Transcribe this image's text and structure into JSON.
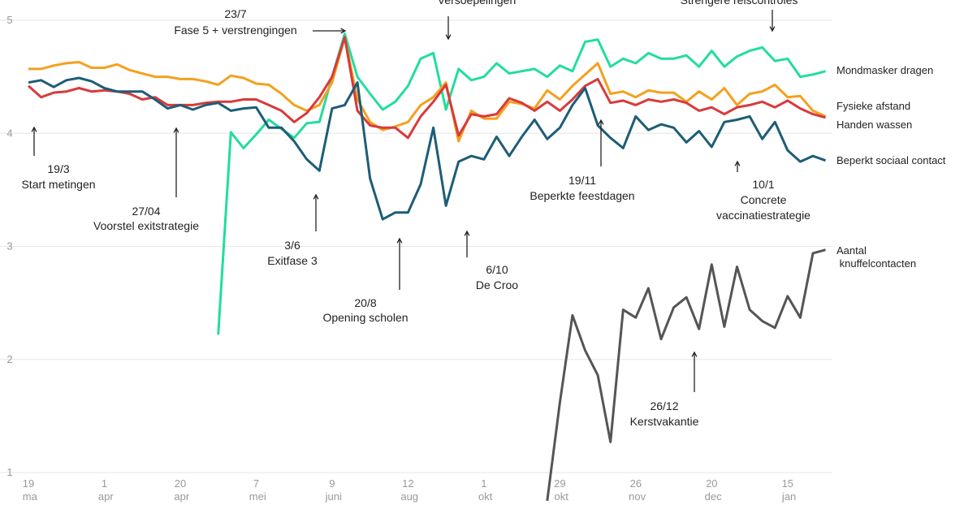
{
  "chart_data": {
    "type": "line",
    "categories": [
      "19 ma",
      null,
      null,
      null,
      null,
      null,
      "1 apr",
      null,
      null,
      null,
      null,
      null,
      "20 apr",
      null,
      null,
      null,
      null,
      null,
      "7 mei",
      null,
      null,
      null,
      null,
      null,
      "9 juni",
      null,
      null,
      null,
      null,
      null,
      "12 aug",
      null,
      null,
      null,
      null,
      null,
      "1 okt",
      null,
      null,
      null,
      null,
      null,
      "29 okt",
      null,
      null,
      null,
      null,
      null,
      "26 nov",
      null,
      null,
      null,
      null,
      null,
      "20 dec",
      null,
      null,
      null,
      null,
      null,
      "15 jan",
      null,
      null,
      null
    ],
    "ylim": [
      1,
      5
    ],
    "yticks": [
      1,
      2,
      3,
      4,
      5
    ],
    "grid": true,
    "series": [
      {
        "name": "Mondmasker dragen",
        "color": "#22dd9e",
        "values": [
          null,
          null,
          null,
          null,
          null,
          null,
          null,
          null,
          null,
          null,
          null,
          null,
          null,
          null,
          null,
          2.22,
          4.01,
          3.87,
          3.99,
          4.12,
          4.04,
          3.96,
          4.09,
          4.1,
          4.5,
          4.88,
          4.5,
          4.35,
          4.21,
          4.28,
          4.42,
          4.66,
          4.71,
          4.21,
          4.57,
          4.47,
          4.5,
          4.62,
          4.53,
          4.55,
          4.57,
          4.5,
          4.6,
          4.55,
          4.81,
          4.83,
          4.59,
          4.66,
          4.62,
          4.71,
          4.66,
          4.66,
          4.69,
          4.59,
          4.73,
          4.59,
          4.68,
          4.73,
          4.76,
          4.64,
          4.66,
          4.5,
          4.52,
          4.55
        ]
      },
      {
        "name": "Fysieke afstand",
        "color": "#f5a01e",
        "values": [
          4.57,
          4.57,
          4.6,
          4.62,
          4.63,
          4.58,
          4.58,
          4.61,
          4.56,
          4.53,
          4.5,
          4.5,
          4.48,
          4.48,
          4.46,
          4.43,
          4.51,
          4.49,
          4.44,
          4.43,
          4.35,
          4.25,
          4.2,
          4.25,
          4.45,
          4.85,
          4.3,
          4.1,
          4.03,
          4.06,
          4.1,
          4.25,
          4.32,
          4.45,
          3.93,
          4.2,
          4.13,
          4.13,
          4.28,
          4.26,
          4.22,
          4.38,
          4.3,
          4.42,
          4.52,
          4.62,
          4.35,
          4.37,
          4.32,
          4.38,
          4.36,
          4.36,
          4.28,
          4.37,
          4.3,
          4.4,
          4.25,
          4.35,
          4.37,
          4.43,
          4.32,
          4.33,
          4.2,
          4.15
        ]
      },
      {
        "name": "Handen wassen",
        "color": "#d93a3a",
        "values": [
          4.42,
          4.32,
          4.36,
          4.37,
          4.4,
          4.37,
          4.38,
          4.37,
          4.35,
          4.3,
          4.32,
          4.25,
          4.25,
          4.25,
          4.27,
          4.28,
          4.28,
          4.3,
          4.3,
          4.25,
          4.2,
          4.1,
          4.18,
          4.32,
          4.5,
          4.85,
          4.2,
          4.07,
          4.05,
          4.05,
          3.96,
          4.15,
          4.28,
          4.43,
          3.98,
          4.17,
          4.15,
          4.17,
          4.31,
          4.27,
          4.2,
          4.28,
          4.2,
          4.3,
          4.42,
          4.48,
          4.27,
          4.29,
          4.25,
          4.3,
          4.28,
          4.3,
          4.27,
          4.2,
          4.23,
          4.17,
          4.23,
          4.25,
          4.28,
          4.23,
          4.29,
          4.22,
          4.17,
          4.14
        ]
      },
      {
        "name": "Beperkt sociaal contact",
        "color": "#1d5d77",
        "values": [
          4.45,
          4.47,
          4.41,
          4.47,
          4.49,
          4.46,
          4.4,
          4.37,
          4.37,
          4.37,
          4.3,
          4.22,
          4.25,
          4.21,
          4.25,
          4.27,
          4.2,
          4.22,
          4.23,
          4.05,
          4.05,
          3.93,
          3.77,
          3.67,
          4.22,
          4.25,
          4.45,
          3.6,
          3.24,
          3.3,
          3.3,
          3.55,
          4.05,
          3.36,
          3.75,
          3.8,
          3.77,
          3.97,
          3.8,
          3.97,
          4.12,
          3.95,
          4.05,
          4.25,
          4.4,
          4.07,
          3.96,
          3.87,
          4.15,
          4.03,
          4.08,
          4.05,
          3.92,
          4.02,
          3.88,
          4.1,
          4.12,
          4.15,
          3.95,
          4.1,
          3.85,
          3.75,
          3.8,
          3.76
        ]
      },
      {
        "name": "Aantal knuffelcontacten",
        "color": "#555555",
        "values": [
          null,
          null,
          null,
          null,
          null,
          null,
          null,
          null,
          null,
          null,
          null,
          null,
          null,
          null,
          null,
          null,
          null,
          null,
          null,
          null,
          null,
          null,
          null,
          null,
          null,
          null,
          null,
          null,
          null,
          null,
          null,
          null,
          null,
          null,
          null,
          null,
          null,
          null,
          null,
          null,
          null,
          0.75,
          1.62,
          2.39,
          2.08,
          1.86,
          1.27,
          2.44,
          2.37,
          2.63,
          2.18,
          2.46,
          2.55,
          2.27,
          2.84,
          2.29,
          2.82,
          2.44,
          2.34,
          2.28,
          2.56,
          2.37,
          2.94,
          2.97
        ]
      }
    ],
    "annotations": [
      {
        "lines": [
          "19/3",
          "Start metingen"
        ]
      },
      {
        "lines": [
          "27/04",
          "Voorstel exitstrategie"
        ]
      },
      {
        "lines": [
          "3/6",
          "Exitfase 3"
        ]
      },
      {
        "lines": [
          "20/8",
          "Opening scholen"
        ]
      },
      {
        "lines": [
          "6/10",
          "De Croo"
        ]
      },
      {
        "lines": [
          "23/7",
          "Fase 5 + verstrengingen"
        ]
      },
      {
        "lines": [
          "Versoepelingen"
        ]
      },
      {
        "lines": [
          "Strengere reiscontroles"
        ]
      },
      {
        "lines": [
          "19/11",
          "Beperkte feestdagen"
        ]
      },
      {
        "lines": [
          "10/1",
          "Concrete",
          "vaccinatiestrategie"
        ]
      },
      {
        "lines": [
          "26/12",
          "Kerstvakantie"
        ]
      }
    ]
  }
}
